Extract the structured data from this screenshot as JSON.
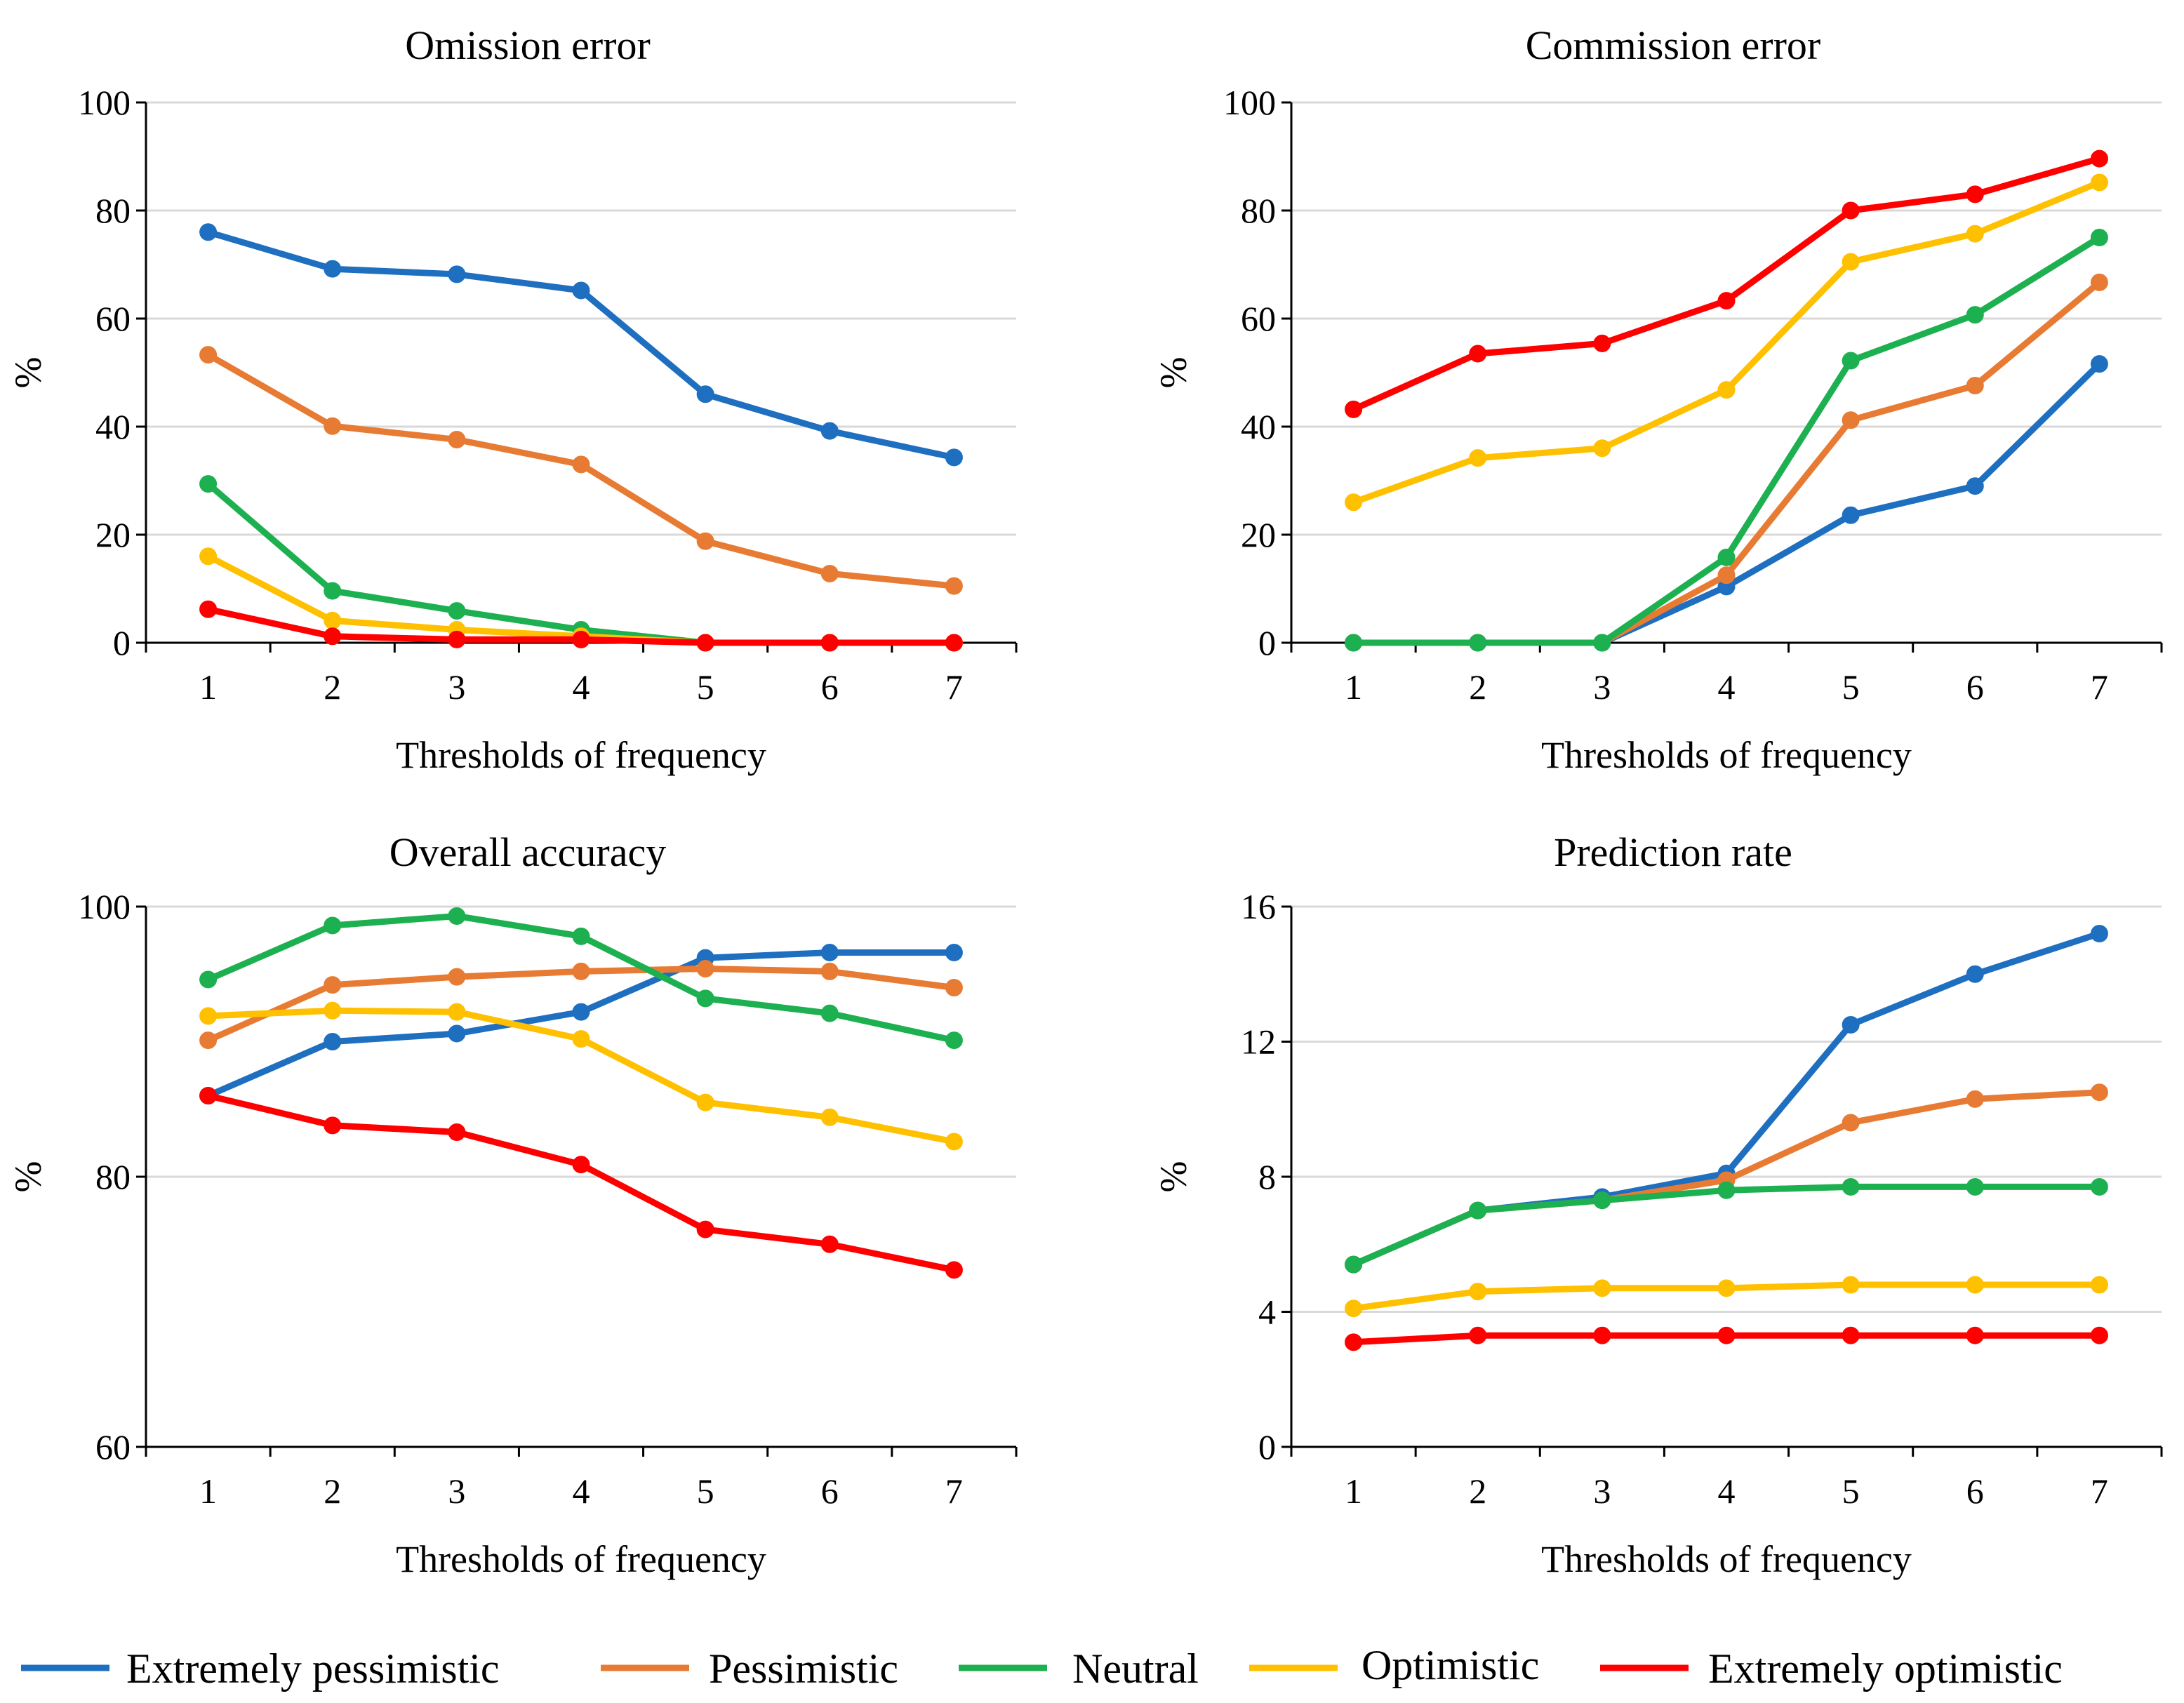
{
  "chart_data": [
    {
      "type": "line",
      "title": "Omission error",
      "xlabel": "Thresholds of frequency",
      "ylabel": "%",
      "categories": [
        "1",
        "2",
        "3",
        "4",
        "5",
        "6",
        "7"
      ],
      "ylim": [
        0,
        100
      ],
      "yticks": [
        "0",
        "20",
        "40",
        "60",
        "80",
        "100"
      ],
      "grid": true,
      "series": [
        {
          "name": "Extremely pessimistic",
          "values": [
            76,
            69.2,
            68.2,
            65.2,
            46,
            39.2,
            34.3
          ]
        },
        {
          "name": "Pessimistic",
          "values": [
            53.3,
            40.1,
            37.6,
            33,
            18.8,
            12.8,
            10.5
          ]
        },
        {
          "name": "Neutral",
          "values": [
            29.4,
            9.6,
            5.9,
            2.4,
            0,
            0,
            0
          ]
        },
        {
          "name": "Optimistic",
          "values": [
            16,
            4.1,
            2.4,
            1.2,
            0,
            0,
            0
          ]
        },
        {
          "name": "Extremely optimistic",
          "values": [
            6.2,
            1.2,
            0.6,
            0.6,
            0,
            0,
            0
          ]
        }
      ]
    },
    {
      "type": "line",
      "title": "Commission error",
      "xlabel": "Thresholds of frequency",
      "ylabel": "%",
      "categories": [
        "1",
        "2",
        "3",
        "4",
        "5",
        "6",
        "7"
      ],
      "ylim": [
        0,
        100
      ],
      "yticks": [
        "0",
        "20",
        "40",
        "60",
        "80",
        "100"
      ],
      "grid": true,
      "series": [
        {
          "name": "Extremely pessimistic",
          "values": [
            0,
            0,
            0,
            10.4,
            23.6,
            29,
            51.6
          ]
        },
        {
          "name": "Pessimistic",
          "values": [
            0,
            0,
            0,
            12.5,
            41.2,
            47.6,
            66.7
          ]
        },
        {
          "name": "Neutral",
          "values": [
            0,
            0,
            0,
            15.8,
            52.2,
            60.7,
            75
          ]
        },
        {
          "name": "Optimistic",
          "values": [
            26,
            34.2,
            36,
            46.8,
            70.5,
            75.7,
            85.2
          ]
        },
        {
          "name": "Extremely optimistic",
          "values": [
            43.2,
            53.5,
            55.4,
            63.3,
            80,
            83,
            89.6
          ]
        }
      ]
    },
    {
      "type": "line",
      "title": "Overall accuracy",
      "xlabel": "Thresholds of frequency",
      "ylabel": "%",
      "categories": [
        "1",
        "2",
        "3",
        "4",
        "5",
        "6",
        "7"
      ],
      "ylim": [
        60,
        100
      ],
      "yticks": [
        "60",
        "80",
        "100"
      ],
      "grid": true,
      "series": [
        {
          "name": "Extremely pessimistic",
          "values": [
            86,
            90,
            90.6,
            92.2,
            96.2,
            96.6,
            96.6
          ]
        },
        {
          "name": "Pessimistic",
          "values": [
            90.1,
            94.2,
            94.8,
            95.2,
            95.4,
            95.2,
            94
          ]
        },
        {
          "name": "Neutral",
          "values": [
            94.6,
            98.6,
            99.3,
            97.8,
            93.2,
            92.1,
            90.1
          ]
        },
        {
          "name": "Optimistic",
          "values": [
            91.9,
            92.3,
            92.2,
            90.2,
            85.5,
            84.4,
            82.6
          ]
        },
        {
          "name": "Extremely optimistic",
          "values": [
            86,
            83.8,
            83.3,
            80.9,
            76.1,
            75,
            73.1
          ]
        }
      ]
    },
    {
      "type": "line",
      "title": "Prediction rate",
      "xlabel": "Thresholds of frequency",
      "ylabel": "%",
      "categories": [
        "1",
        "2",
        "3",
        "4",
        "5",
        "6",
        "7"
      ],
      "ylim": [
        0,
        16
      ],
      "yticks": [
        "0",
        "4",
        "8",
        "12",
        "16"
      ],
      "grid": true,
      "series": [
        {
          "name": "Extremely pessimistic",
          "values": [
            5.4,
            7,
            7.4,
            8.1,
            12.5,
            14,
            15.2
          ]
        },
        {
          "name": "Pessimistic",
          "values": [
            5.4,
            7,
            7.3,
            7.9,
            9.6,
            10.3,
            10.5
          ]
        },
        {
          "name": "Neutral",
          "values": [
            5.4,
            7,
            7.3,
            7.6,
            7.7,
            7.7,
            7.7
          ]
        },
        {
          "name": "Optimistic",
          "values": [
            4.1,
            4.6,
            4.7,
            4.7,
            4.8,
            4.8,
            4.8
          ]
        },
        {
          "name": "Extremely optimistic",
          "values": [
            3.1,
            3.3,
            3.3,
            3.3,
            3.3,
            3.3,
            3.3
          ]
        }
      ]
    }
  ],
  "legend": {
    "position": "bottom",
    "items": [
      {
        "label": "Extremely pessimistic",
        "color": "#1F6FC0"
      },
      {
        "label": "Pessimistic",
        "color": "#E87B33"
      },
      {
        "label": "Neutral",
        "color": "#1DB050"
      },
      {
        "label": "Optimistic",
        "color": "#FFC000"
      },
      {
        "label": "Extremely optimistic",
        "color": "#FF0000"
      }
    ]
  }
}
